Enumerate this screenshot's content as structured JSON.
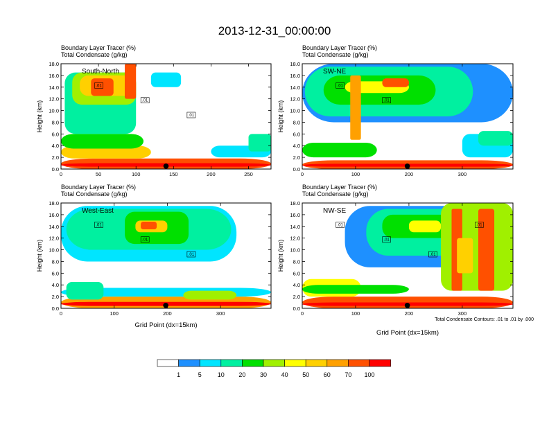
{
  "title": "2013-12-31_00:00:00",
  "common": {
    "ylabel": "Height (km)",
    "xlabel": "Grid Point (dx=15km)",
    "header_line1": "Boundary Layer Tracer    (%)",
    "header_line2": "Total Condensate    (g/kg)",
    "yticks": [
      "0.0",
      "2.0",
      "4.0",
      "6.0",
      "8.0",
      "10.0",
      "12.0",
      "14.0",
      "16.0",
      "18.0"
    ]
  },
  "footnote": "Total Condensate Contours: .01 to .01 by .000",
  "colorbar": {
    "colors": [
      "#ffffff",
      "#1e90ff",
      "#00e5ff",
      "#00f0a0",
      "#00e000",
      "#a0f000",
      "#ffff00",
      "#ffd000",
      "#ffa000",
      "#ff5000",
      "#ff0000"
    ],
    "labels": [
      "1",
      "5",
      "10",
      "20",
      "30",
      "40",
      "50",
      "60",
      "70",
      "100"
    ]
  },
  "chart_data": [
    {
      "type": "heatmap",
      "panel": "South-North",
      "label": "South-North",
      "xlim": [
        0,
        280
      ],
      "ylim": [
        0,
        18
      ],
      "xticks": [
        "0",
        "50",
        "100",
        "150",
        "200",
        "250"
      ],
      "xtick_values": [
        0,
        50,
        100,
        150,
        200,
        250
      ],
      "marker_x": 140,
      "contour_labels": [
        ".01",
        ".01",
        ".01"
      ],
      "show_xlabel": false
    },
    {
      "type": "heatmap",
      "panel": "SW-NE",
      "label": "SW-NE",
      "xlim": [
        0,
        395
      ],
      "ylim": [
        0,
        18
      ],
      "xticks": [
        "0",
        "100",
        "200",
        "300"
      ],
      "xtick_values": [
        0,
        100,
        200,
        300
      ],
      "marker_x": 197,
      "contour_labels": [
        ".01",
        ".01"
      ],
      "show_xlabel": false
    },
    {
      "type": "heatmap",
      "panel": "West-East",
      "label": "West-East",
      "xlim": [
        0,
        395
      ],
      "ylim": [
        0,
        18
      ],
      "xticks": [
        "0",
        "100",
        "200",
        "300"
      ],
      "xtick_values": [
        0,
        100,
        200,
        300
      ],
      "marker_x": 197,
      "contour_labels": [
        ".01",
        ".01",
        ".01"
      ],
      "show_xlabel": true
    },
    {
      "type": "heatmap",
      "panel": "NW-SE",
      "label": "NW-SE",
      "xlim": [
        0,
        395
      ],
      "ylim": [
        0,
        18
      ],
      "xticks": [
        "0",
        "100",
        "200",
        "300"
      ],
      "xtick_values": [
        0,
        100,
        200,
        300
      ],
      "marker_x": 197,
      "contour_labels": [
        ".01",
        ".01",
        ".01",
        ".01"
      ],
      "show_xlabel": true
    }
  ]
}
